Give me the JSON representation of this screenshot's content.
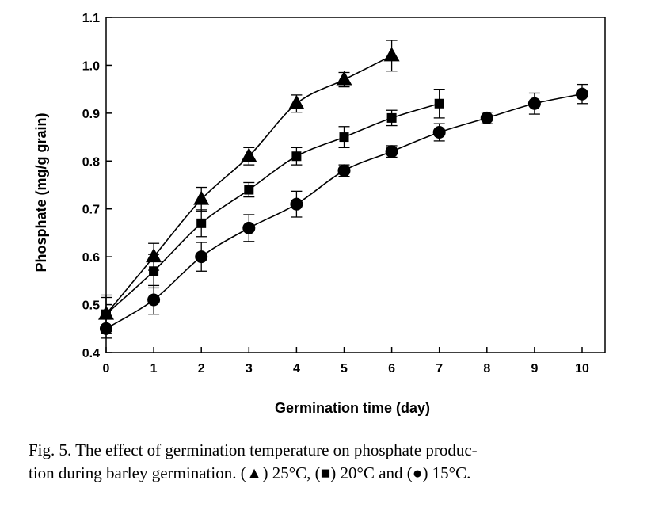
{
  "chart_data": {
    "type": "line",
    "title": "",
    "xlabel": "Germination time (day)",
    "ylabel": "Phosphate (mg/g grain)",
    "xlim": [
      0,
      10.5
    ],
    "ylim": [
      0.4,
      1.1
    ],
    "xticks": [
      "0",
      "1",
      "2",
      "3",
      "4",
      "5",
      "6",
      "7",
      "8",
      "9",
      "10"
    ],
    "yticks": [
      "0.4",
      "0.5",
      "0.6",
      "0.7",
      "0.8",
      "0.9",
      "1.0",
      "1.1"
    ],
    "ytick_values": [
      0.4,
      0.5,
      0.6,
      0.7,
      0.8,
      0.9,
      1.0,
      1.1
    ],
    "grid": false,
    "series": [
      {
        "name": "25°C",
        "marker": "triangle",
        "x": [
          0,
          1,
          2,
          3,
          4,
          5,
          6
        ],
        "y": [
          0.48,
          0.6,
          0.72,
          0.81,
          0.92,
          0.97,
          1.02
        ],
        "err": [
          0.035,
          0.028,
          0.025,
          0.018,
          0.018,
          0.015,
          0.032
        ]
      },
      {
        "name": "20°C",
        "marker": "square",
        "x": [
          0,
          1,
          2,
          3,
          4,
          5,
          6,
          7
        ],
        "y": [
          0.48,
          0.57,
          0.67,
          0.74,
          0.81,
          0.85,
          0.89,
          0.92
        ],
        "err": [
          0.04,
          0.035,
          0.028,
          0.015,
          0.018,
          0.022,
          0.016,
          0.03
        ]
      },
      {
        "name": "15°C",
        "marker": "circle",
        "x": [
          0,
          1,
          2,
          3,
          4,
          5,
          6,
          7,
          8,
          9,
          10
        ],
        "y": [
          0.45,
          0.51,
          0.6,
          0.66,
          0.71,
          0.78,
          0.82,
          0.86,
          0.89,
          0.92,
          0.94
        ],
        "err": [
          0.02,
          0.03,
          0.03,
          0.028,
          0.027,
          0.012,
          0.012,
          0.018,
          0.012,
          0.022,
          0.02
        ]
      }
    ]
  },
  "caption": {
    "line1": "Fig. 5. The effect of germination temperature on phosphate produc-",
    "line2": "tion during barley germination. (▲) 25°C, (■) 20°C and (●) 15°C."
  }
}
